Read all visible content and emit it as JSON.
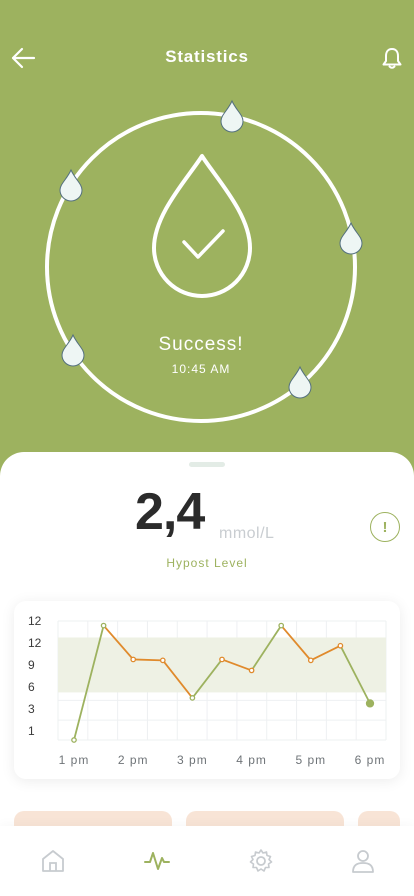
{
  "header": {
    "title": "Statistics"
  },
  "status": {
    "message": "Success!",
    "time": "10:45 AM"
  },
  "reading": {
    "value": "2,4",
    "unit": "mmol/L",
    "label": "Hypost Level"
  },
  "chart_data": {
    "type": "line",
    "y_tick_labels": [
      "12",
      "12",
      "9",
      "6",
      "3",
      "1"
    ],
    "x_tick_labels": [
      "1 pm",
      "2 pm",
      "3 pm",
      "4 pm",
      "5 pm",
      "6 pm"
    ],
    "x": [
      1.0,
      1.5,
      2.0,
      2.5,
      3.0,
      3.5,
      4.0,
      4.5,
      5.0,
      5.5,
      6.0
    ],
    "target_range": [
      6.2,
      12.2
    ],
    "series": [
      {
        "values": [
          1,
          13.5,
          9.8,
          9.7,
          5.6,
          9.8,
          8.6,
          13.5,
          9.7,
          11.3,
          5.0
        ]
      }
    ],
    "colors": {
      "in_range": "#9db25f",
      "out_of_range": "#e08a2c",
      "band": "#eef1e4",
      "grid": "#eef0f2"
    },
    "grid": true
  },
  "colors": {
    "accent": "#9db25f",
    "warning": "#e08a2c"
  },
  "tabs": [
    {
      "icon": "home-icon"
    },
    {
      "icon": "activity-icon",
      "active": true
    },
    {
      "icon": "settings-icon"
    },
    {
      "icon": "profile-icon"
    }
  ]
}
